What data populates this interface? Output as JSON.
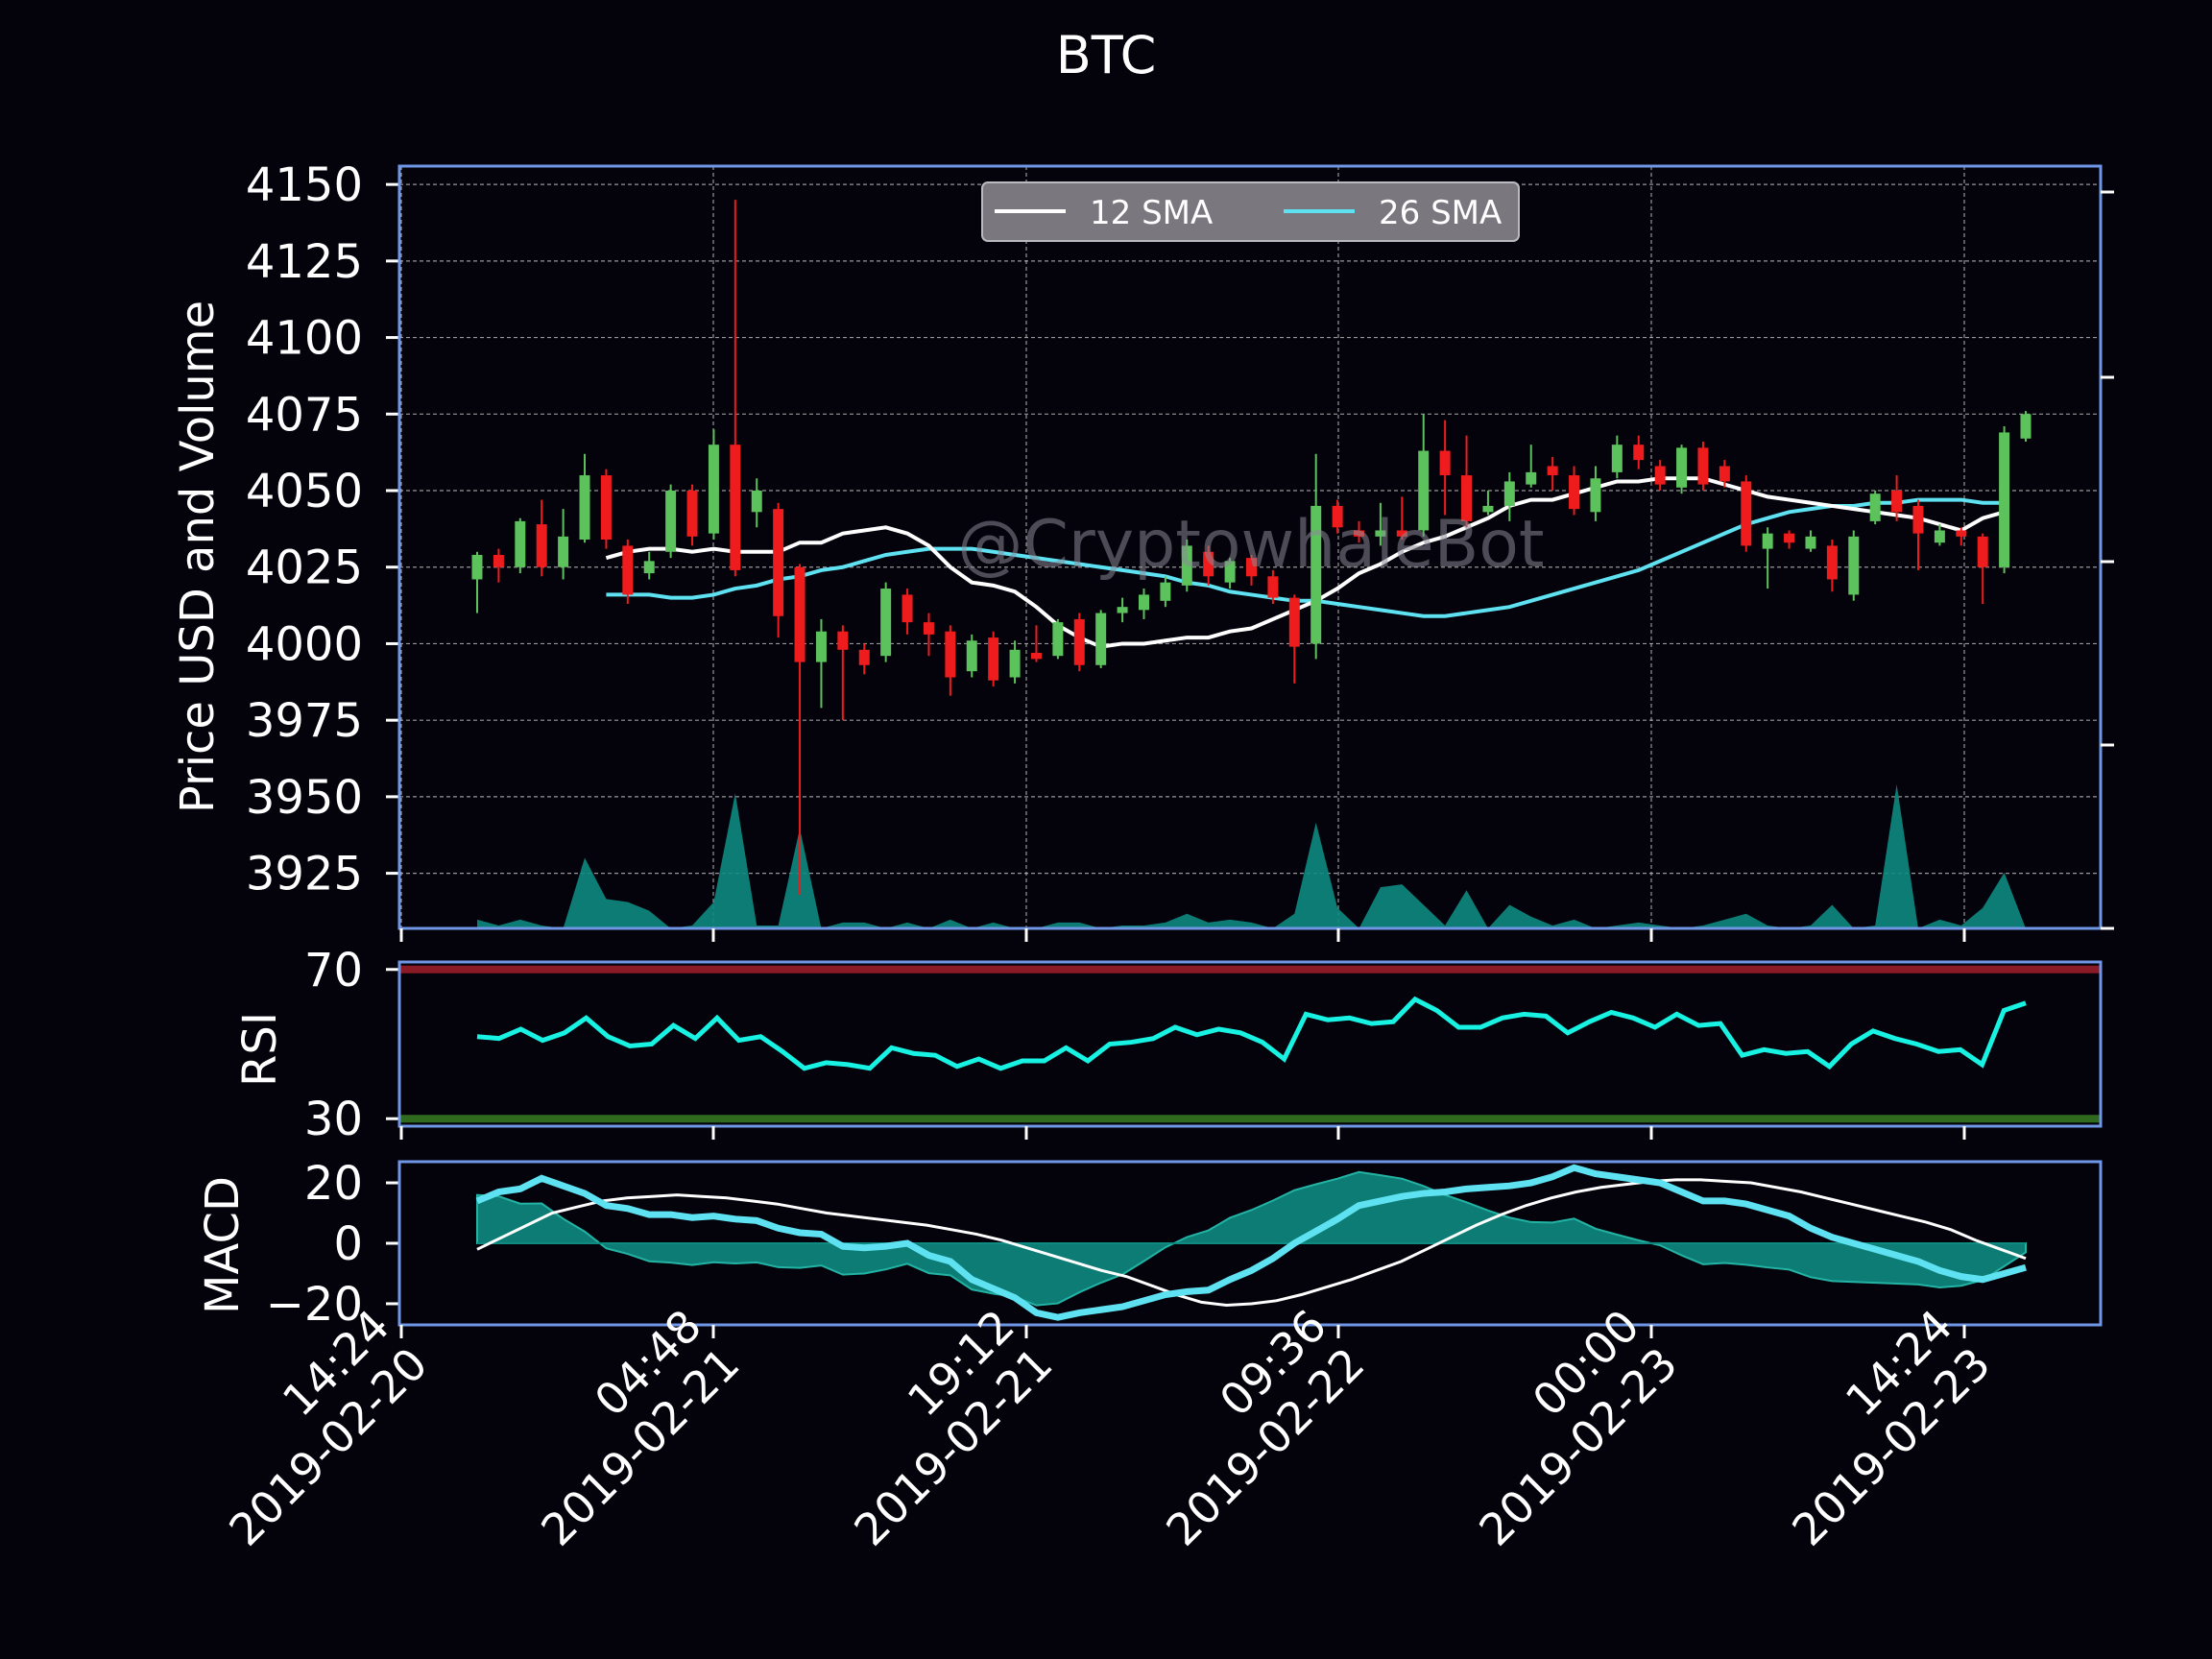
{
  "title": "BTC",
  "watermark": "@CryptowhaleBot",
  "colors": {
    "background": "#04020b",
    "axes_frame": "#6f97e6",
    "grid": "#bdbdbd",
    "bull_candle": "#5cc25c",
    "bear_candle": "#ee1c1c",
    "volume_fill": "#0e8a80",
    "sma12": "#ffffff",
    "sma26": "#5ee2f2",
    "rsi_line": "#18f2e2",
    "rsi_overbought": "#8a1a26",
    "rsi_oversold": "#2f6a1e",
    "macd_line": "#5ee2f2",
    "macd_signal": "#ffffff",
    "macd_hist": "#0e8a80"
  },
  "chart_data": [
    {
      "type": "candlestick",
      "ylabel": "Price USD and Volume",
      "ylim": [
        3907,
        4156
      ],
      "yticks": [
        3925,
        3950,
        3975,
        4000,
        4025,
        4050,
        4075,
        4100,
        4125,
        4150
      ],
      "grid": true,
      "legend": {
        "placement": "top-center",
        "entries": [
          "12 SMA",
          "26 SMA"
        ]
      },
      "xticks": [
        "14:24\n2019-02-20",
        "04:48\n2019-02-21",
        "19:12\n2019-02-21",
        "09:36\n2019-02-22",
        "00:00\n2019-02-23",
        "14:24\n2019-02-23"
      ],
      "candles": [
        [
          4021,
          4029,
          4010,
          4030
        ],
        [
          4029,
          4025,
          4020,
          4031
        ],
        [
          4025,
          4040,
          4023,
          4041
        ],
        [
          4039,
          4025,
          4022,
          4047
        ],
        [
          4025,
          4035,
          4021,
          4044
        ],
        [
          4034,
          4055,
          4033,
          4062
        ],
        [
          4055,
          4034,
          4031,
          4057
        ],
        [
          4032,
          4016,
          4013,
          4034
        ],
        [
          4023,
          4027,
          4021,
          4030
        ],
        [
          4030,
          4050,
          4028,
          4052
        ],
        [
          4050,
          4035,
          4032,
          4052
        ],
        [
          4036,
          4065,
          4034,
          4070
        ],
        [
          4065,
          4024,
          4022,
          4145
        ],
        [
          4043,
          4050,
          4038,
          4054
        ],
        [
          4044,
          4009,
          4002,
          4046
        ],
        [
          4025,
          3994,
          3918,
          4026
        ],
        [
          3994,
          4004,
          3979,
          4008
        ],
        [
          4004,
          3998,
          3975,
          4006
        ],
        [
          3998,
          3993,
          3990,
          4000
        ],
        [
          3996,
          4018,
          3994,
          4020
        ],
        [
          4016,
          4007,
          4003,
          4018
        ],
        [
          4007,
          4003,
          3996,
          4010
        ],
        [
          4004,
          3989,
          3983,
          4006
        ],
        [
          3991,
          4001,
          3989,
          4003
        ],
        [
          4002,
          3988,
          3986,
          4004
        ],
        [
          3989,
          3998,
          3987,
          4001
        ],
        [
          3997,
          3995,
          3994,
          4006
        ],
        [
          3996,
          4007,
          3995,
          4008
        ],
        [
          4008,
          3993,
          3991,
          4010
        ],
        [
          3993,
          4010,
          3992,
          4011
        ],
        [
          4010,
          4012,
          4007,
          4015
        ],
        [
          4011,
          4016,
          4008,
          4018
        ],
        [
          4014,
          4020,
          4012,
          4022
        ],
        [
          4019,
          4032,
          4017,
          4034
        ],
        [
          4030,
          4022,
          4019,
          4032
        ],
        [
          4020,
          4027,
          4018,
          4028
        ],
        [
          4028,
          4022,
          4019,
          4029
        ],
        [
          4022,
          4015,
          4013,
          4024
        ],
        [
          4015,
          3999,
          3987,
          4016
        ],
        [
          4000,
          4045,
          3995,
          4062
        ],
        [
          4045,
          4038,
          4036,
          4047
        ],
        [
          4037,
          4035,
          4033,
          4040
        ],
        [
          4035,
          4037,
          4032,
          4046
        ],
        [
          4037,
          4035,
          4034,
          4048
        ],
        [
          4037,
          4063,
          4035,
          4075
        ],
        [
          4063,
          4055,
          4042,
          4073
        ],
        [
          4055,
          4040,
          4038,
          4068
        ],
        [
          4043,
          4045,
          4042,
          4050
        ],
        [
          4045,
          4053,
          4040,
          4056
        ],
        [
          4052,
          4056,
          4051,
          4065
        ],
        [
          4058,
          4055,
          4050,
          4061
        ],
        [
          4055,
          4044,
          4042,
          4058
        ],
        [
          4043,
          4054,
          4040,
          4058
        ],
        [
          4056,
          4065,
          4054,
          4068
        ],
        [
          4065,
          4060,
          4057,
          4068
        ],
        [
          4058,
          4052,
          4050,
          4060
        ],
        [
          4051,
          4064,
          4049,
          4065
        ],
        [
          4064,
          4052,
          4050,
          4066
        ],
        [
          4058,
          4053,
          4051,
          4060
        ],
        [
          4053,
          4032,
          4030,
          4055
        ],
        [
          4031,
          4036,
          4018,
          4038
        ],
        [
          4036,
          4033,
          4031,
          4037
        ],
        [
          4031,
          4035,
          4030,
          4037
        ],
        [
          4032,
          4021,
          4017,
          4034
        ],
        [
          4016,
          4035,
          4014,
          4037
        ],
        [
          4040,
          4049,
          4039,
          4050
        ],
        [
          4050,
          4043,
          4040,
          4055
        ],
        [
          4045,
          4036,
          4024,
          4047
        ],
        [
          4033,
          4037,
          4032,
          4039
        ],
        [
          4037,
          4035,
          4032,
          4038
        ],
        [
          4035,
          4025,
          4013,
          4036
        ],
        [
          4025,
          4069,
          4023,
          4071
        ],
        [
          4067,
          4075,
          4066,
          4076
        ]
      ],
      "series": [
        {
          "name": "12 SMA",
          "values": [
            4028,
            4030,
            4031,
            4031,
            4030,
            4031,
            4030,
            4030,
            4030,
            4033,
            4033,
            4036,
            4037,
            4038,
            4036,
            4032,
            4025,
            4020,
            4019,
            4017,
            4012,
            4006,
            4002,
            3999,
            4000,
            4000,
            4001,
            4002,
            4002,
            4004,
            4005,
            4008,
            4011,
            4014,
            4018,
            4023,
            4026,
            4030,
            4033,
            4035,
            4038,
            4041,
            4045,
            4047,
            4047,
            4049,
            4051,
            4053,
            4053,
            4054,
            4054,
            4054,
            4052,
            4050,
            4048,
            4047,
            4046,
            4045,
            4044,
            4043,
            4042,
            4041,
            4039,
            4037,
            4041,
            4043
          ]
        },
        {
          "name": "26 SMA",
          "values": [
            4016,
            4016,
            4016,
            4015,
            4015,
            4016,
            4018,
            4019,
            4021,
            4022,
            4024,
            4025,
            4027,
            4029,
            4030,
            4031,
            4031,
            4031,
            4030,
            4029,
            4028,
            4027,
            4026,
            4025,
            4024,
            4023,
            4022,
            4020,
            4019,
            4017,
            4016,
            4015,
            4014,
            4014,
            4013,
            4012,
            4011,
            4010,
            4009,
            4009,
            4010,
            4011,
            4012,
            4014,
            4016,
            4018,
            4020,
            4022,
            4024,
            4027,
            4030,
            4033,
            4036,
            4039,
            4041,
            4043,
            4044,
            4045,
            4045,
            4046,
            4046,
            4047,
            4047,
            4047,
            4046,
            4046
          ]
        }
      ],
      "volume": [
        3,
        1,
        3,
        1,
        0,
        24,
        10,
        9,
        6,
        0,
        1,
        9,
        46,
        1,
        1,
        34,
        0,
        2,
        2,
        0,
        2,
        0,
        3,
        0,
        2,
        0,
        0,
        2,
        2,
        0,
        1,
        1,
        2,
        5,
        2,
        3,
        2,
        0,
        5,
        36,
        7,
        0,
        14,
        15,
        8,
        1,
        13,
        0,
        8,
        4,
        1,
        3,
        0,
        1,
        2,
        1,
        0,
        1,
        3,
        5,
        1,
        0,
        1,
        8,
        0,
        1,
        49,
        0,
        3,
        1,
        7,
        19,
        0
      ]
    },
    {
      "type": "line",
      "ylabel": "RSI",
      "ylim": [
        28,
        72
      ],
      "yticks": [
        30,
        70
      ],
      "reference_lines": [
        70,
        30
      ],
      "series": [
        {
          "name": "RSI",
          "values": [
            52,
            51.5,
            54,
            51,
            53,
            57,
            52,
            49.5,
            50,
            55,
            51.5,
            57,
            51,
            52,
            48,
            43.5,
            45,
            44.5,
            43.5,
            49,
            47.5,
            47,
            44,
            46,
            43.5,
            45.5,
            45.5,
            49,
            45.5,
            50,
            50.5,
            51.5,
            54.5,
            52.5,
            54,
            53,
            50.5,
            46,
            58,
            56.5,
            57,
            55.5,
            56,
            62,
            59,
            54.5,
            54.5,
            57,
            58,
            57.5,
            53,
            56,
            58.5,
            57,
            54.5,
            58,
            55,
            55.5,
            47,
            48.5,
            47.5,
            48,
            44,
            50,
            53.5,
            51.5,
            50,
            48,
            48.5,
            44.5,
            59,
            61
          ]
        }
      ]
    },
    {
      "type": "line",
      "ylabel": "MACD",
      "ylim": [
        -27,
        27
      ],
      "yticks": [
        -20,
        0,
        20
      ],
      "series": [
        {
          "name": "MACD",
          "values": [
            14,
            17,
            18,
            21.5,
            19,
            16.5,
            12.5,
            11.5,
            9.5,
            9.5,
            8.5,
            9,
            8,
            7.5,
            5,
            3.5,
            3,
            -1,
            -1.5,
            -1,
            0,
            -4,
            -6,
            -12,
            -15,
            -18,
            -23,
            -24.5,
            -23,
            -22,
            -21,
            -19,
            -17,
            -16,
            -15.5,
            -12,
            -9,
            -5,
            0,
            4,
            8,
            12.5,
            14,
            15.5,
            16.5,
            17,
            18,
            18.5,
            19,
            20,
            22,
            25,
            23,
            22,
            21,
            20,
            17,
            14,
            14,
            13,
            11,
            9,
            5,
            2,
            0,
            -2,
            -4,
            -6,
            -9,
            -11,
            -12,
            -10,
            -8
          ]
        },
        {
          "name": "Signal",
          "values": [
            -2,
            2,
            6,
            10,
            12,
            14,
            15,
            15.5,
            16,
            15.5,
            15,
            14,
            13,
            11.5,
            10,
            9,
            8,
            7,
            6,
            4.5,
            3,
            1,
            -1.5,
            -4,
            -6.5,
            -9,
            -11,
            -14,
            -17,
            -19.5,
            -20.5,
            -20,
            -19,
            -17,
            -14.5,
            -12,
            -9,
            -6,
            -2,
            2,
            6,
            9.5,
            12.5,
            15,
            17,
            18.5,
            19.5,
            20.5,
            21,
            21,
            20.5,
            20,
            18.5,
            17,
            15,
            13,
            11,
            9,
            7,
            4.5,
            1,
            -2,
            -5
          ]
        }
      ]
    }
  ]
}
